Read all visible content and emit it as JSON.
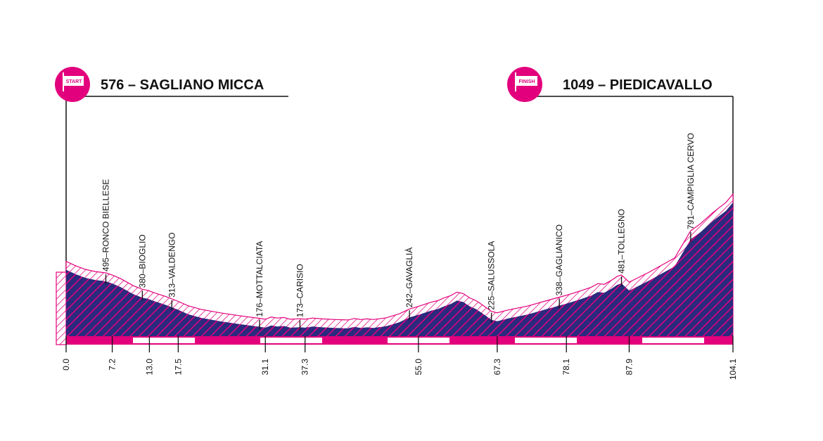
{
  "start": {
    "badge": "START",
    "title": "576 – SAGLIANO MICCA"
  },
  "finish": {
    "badge": "FINISH",
    "title": "1049 – PIEDICAVALLO"
  },
  "colors": {
    "accent": "#e3007d",
    "fill": "#2b2a7e",
    "stripe": "#e3007d",
    "ink": "#111111"
  },
  "chart_data": {
    "type": "area",
    "xlabel": "",
    "ylabel": "",
    "xlim": [
      0,
      104.1
    ],
    "x_ticks": [
      0.0,
      7.2,
      13.0,
      17.5,
      31.1,
      37.3,
      55.0,
      67.3,
      78.1,
      87.9,
      104.1
    ],
    "x_tick_labels": [
      "0.0",
      "7.2",
      "13.0",
      "17.5",
      "31.1",
      "37.3",
      "55.0",
      "67.3",
      "78.1",
      "87.9",
      "104.1"
    ],
    "locations": [
      {
        "km": 6.2,
        "label": "495–RONCO BIELLESE"
      },
      {
        "km": 11.9,
        "label": "380–BIOGLIO"
      },
      {
        "km": 16.5,
        "label": "313–VALDENGO"
      },
      {
        "km": 30.2,
        "label": "176–MOTTALCIATA"
      },
      {
        "km": 36.5,
        "label": "173–CARISIO"
      },
      {
        "km": 53.6,
        "label": "242–GAVAGLIÀ"
      },
      {
        "km": 66.4,
        "label": "225–SALUSSOLA"
      },
      {
        "km": 77.0,
        "label": "338–GAGLIANICO"
      },
      {
        "km": 86.7,
        "label": "481–TOLLEGNO"
      },
      {
        "km": 97.5,
        "label": "791–CAMPIGLIA CERVO"
      }
    ],
    "series": [
      {
        "x": [
          0,
          1.5,
          3,
          4.5,
          6.2,
          7.2,
          8.5,
          9.5,
          10.5,
          11.9,
          12.8,
          13.5,
          14.5,
          15.5,
          16.5,
          17.5,
          19,
          21,
          24,
          27,
          30.2,
          31.1,
          32,
          33,
          34,
          35,
          36.5,
          37.3,
          38.5,
          40,
          42,
          44,
          45,
          46,
          47,
          48,
          50,
          52,
          53.6,
          55,
          56,
          57,
          58,
          59,
          60,
          61,
          62,
          63,
          64,
          65,
          66.4,
          67.3,
          69,
          72,
          75,
          77,
          78.1,
          80,
          82,
          83,
          84,
          85,
          86,
          86.7,
          87.9,
          89,
          91,
          93,
          95,
          97.5,
          99,
          101,
          103,
          104.1
        ],
        "y": [
          576,
          545,
          520,
          505,
          495,
          480,
          455,
          430,
          405,
          380,
          372,
          360,
          345,
          330,
          313,
          295,
          265,
          240,
          215,
          195,
          176,
          170,
          185,
          178,
          182,
          170,
          173,
          170,
          178,
          172,
          168,
          165,
          175,
          168,
          172,
          168,
          180,
          208,
          242,
          260,
          275,
          290,
          300,
          320,
          335,
          360,
          350,
          320,
          300,
          270,
          225,
          215,
          235,
          262,
          300,
          325,
          338,
          365,
          395,
          420,
          415,
          440,
          470,
          481,
          430,
          455,
          500,
          550,
          600,
          791,
          840,
          920,
          990,
          1049
        ]
      }
    ]
  }
}
